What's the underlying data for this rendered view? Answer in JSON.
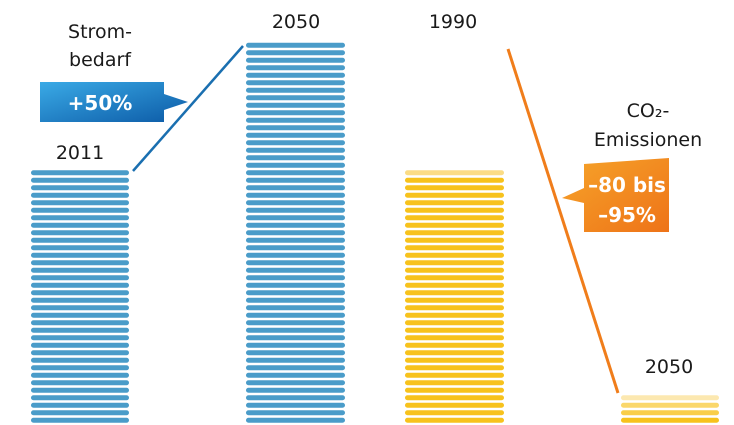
{
  "chart_data": {
    "type": "bar",
    "groups": [
      {
        "name": "Strombedarf",
        "label_line1": "Strom-",
        "label_line2": "bedarf",
        "change": "+50%",
        "bars": [
          {
            "year": "2011",
            "value": 100
          },
          {
            "year": "2050",
            "value": 150
          }
        ]
      },
      {
        "name": "CO₂-Emissionen",
        "label_line1": "CO₂-",
        "label_line2": "Emissionen",
        "change_line1": "–80 bis",
        "change_line2": "–95%",
        "bars": [
          {
            "year": "1990",
            "value": 100
          },
          {
            "year": "2050",
            "value": 12.5
          }
        ]
      }
    ],
    "colors": {
      "blue_bar": "#4a9cc9",
      "blue_bar_top": "#4a9cc9",
      "blue_badge": "#0d63ae",
      "blue_badge_light": "#2a9ee0",
      "blue_connector": "#1a6fb0",
      "yellow_bar": "#f7c21c",
      "yellow_bar_top": "#fbdc85",
      "orange_badge": "#f07d1b",
      "orange_badge_light": "#f5a623",
      "orange_connector": "#f07d1b"
    }
  }
}
